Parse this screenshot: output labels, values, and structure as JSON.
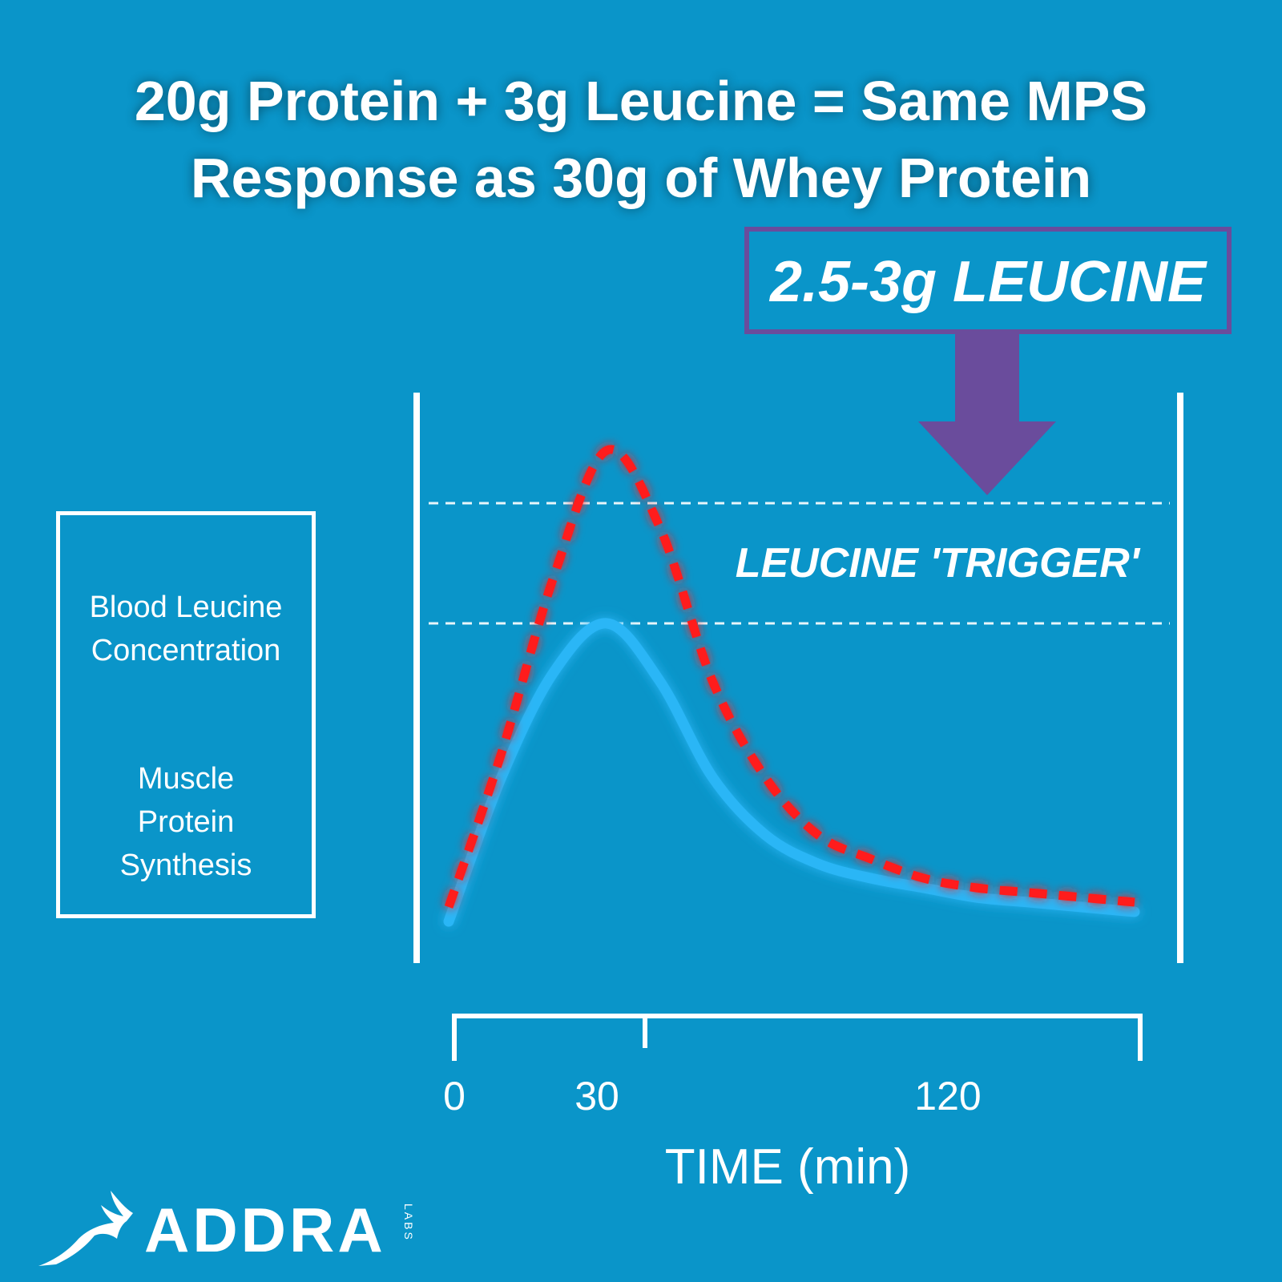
{
  "title_line1": "20g Protein + 3g Leucine = Same MPS",
  "title_line2": "Response as 30g of Whey Protein",
  "callout_label": "2.5-3g LEUCINE",
  "threshold_label": "LEUCINE 'TRIGGER'",
  "legend": {
    "leucine_label_line1": "Blood Leucine",
    "leucine_label_line2": "Concentration",
    "mps_label_line1": "Muscle",
    "mps_label_line2": "Protein",
    "mps_label_line3": "Synthesis"
  },
  "logo": {
    "name": "ADDRA",
    "sub": "LABS"
  },
  "colors": {
    "background": "#0a95c9",
    "leucine_line": "#ff1a1a",
    "mps_line": "#29b6f6",
    "callout": "#6a4c9c"
  },
  "chart_data": {
    "type": "line",
    "xlabel": "TIME (min)",
    "ylabel": "",
    "x_ticks": [
      "0",
      "30",
      "120"
    ],
    "series": [
      {
        "name": "Blood Leucine Concentration",
        "style": "dashed",
        "x": [
          0,
          10,
          20,
          30,
          40,
          50,
          60,
          70,
          80,
          90,
          100,
          110,
          120,
          130
        ],
        "y": [
          0.03,
          0.35,
          0.72,
          0.98,
          0.82,
          0.5,
          0.3,
          0.18,
          0.13,
          0.09,
          0.07,
          0.06,
          0.05,
          0.04
        ]
      },
      {
        "name": "Muscle Protein Synthesis",
        "style": "solid",
        "x": [
          0,
          10,
          20,
          30,
          40,
          50,
          60,
          70,
          80,
          90,
          100,
          110,
          120,
          130
        ],
        "y": [
          0.0,
          0.3,
          0.52,
          0.62,
          0.5,
          0.3,
          0.18,
          0.12,
          0.09,
          0.07,
          0.05,
          0.04,
          0.03,
          0.02
        ]
      }
    ],
    "thresholds": [
      0.87,
      0.62
    ],
    "xlim": [
      0,
      130
    ],
    "ylim": [
      0,
      1.1
    ],
    "grid": false,
    "legend_position": "left"
  }
}
